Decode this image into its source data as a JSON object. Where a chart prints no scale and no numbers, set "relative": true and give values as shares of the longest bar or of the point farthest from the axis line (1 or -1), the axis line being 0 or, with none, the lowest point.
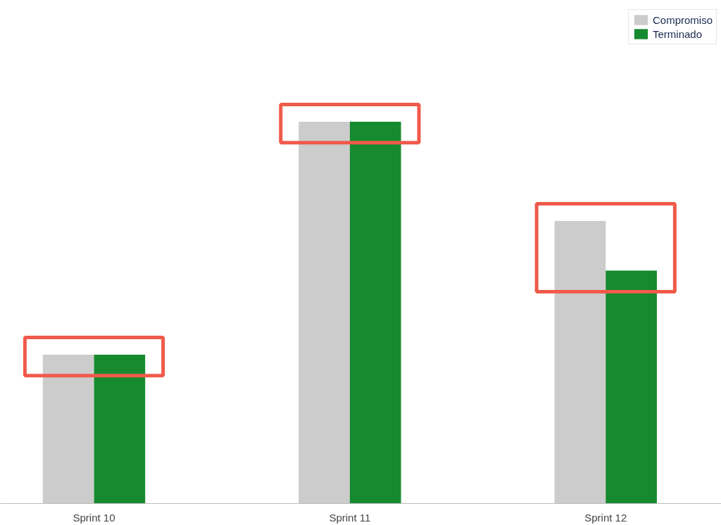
{
  "chart_data": {
    "type": "bar",
    "relative": true,
    "categories": [
      "Sprint 10",
      "Sprint 11",
      "Sprint 12"
    ],
    "series": [
      {
        "name": "Compromiso",
        "color": "#cccccc",
        "values": [
          0.39,
          1,
          0.74
        ]
      },
      {
        "name": "Terminado",
        "color": "#168a2f",
        "values": [
          0.39,
          1,
          0.61
        ]
      }
    ],
    "legend": "top right",
    "grid": false
  }
}
